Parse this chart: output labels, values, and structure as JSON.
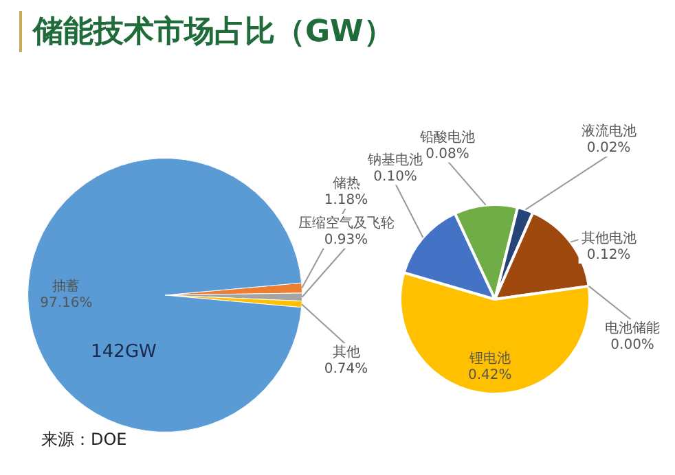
{
  "chart_data": [
    {
      "type": "pie",
      "title": "储能技术市场占比（GW）",
      "categories": [
        "储热",
        "压缩空气及飞轮",
        "其他",
        "抽蓄"
      ],
      "values": [
        1.18,
        0.93,
        0.74,
        97.16
      ],
      "colors": [
        "#ed7d31",
        "#a5a5a5",
        "#ffc000",
        "#5b9bd5"
      ],
      "value_labels": [
        "1.18%",
        "0.93%",
        "0.74%",
        "97.16%"
      ],
      "annotations": [
        "142GW",
        "来源：DOE"
      ]
    },
    {
      "type": "pie",
      "categories": [
        "铅酸电池",
        "液流电池",
        "其他电池",
        "电池储能",
        "锂电池",
        "钠基电池"
      ],
      "values": [
        0.08,
        0.02,
        0.12,
        0.0,
        0.42,
        0.1
      ],
      "colors": [
        "#70ad47",
        "#264478",
        "#9e480e",
        "#636363",
        "#ffc000",
        "#4472c4"
      ],
      "value_labels": [
        "0.08%",
        "0.02%",
        "0.12%",
        "0.00%",
        "0.42%",
        "0.10%"
      ]
    }
  ]
}
